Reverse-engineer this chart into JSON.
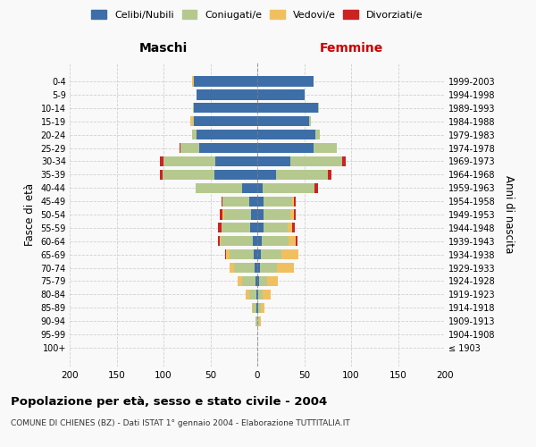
{
  "age_groups": [
    "100+",
    "95-99",
    "90-94",
    "85-89",
    "80-84",
    "75-79",
    "70-74",
    "65-69",
    "60-64",
    "55-59",
    "50-54",
    "45-49",
    "40-44",
    "35-39",
    "30-34",
    "25-29",
    "20-24",
    "15-19",
    "10-14",
    "5-9",
    "0-4"
  ],
  "birth_years": [
    "≤ 1903",
    "1904-1908",
    "1909-1913",
    "1914-1918",
    "1919-1923",
    "1924-1928",
    "1929-1933",
    "1934-1938",
    "1939-1943",
    "1944-1948",
    "1949-1953",
    "1954-1958",
    "1959-1963",
    "1964-1968",
    "1969-1973",
    "1974-1978",
    "1979-1983",
    "1984-1988",
    "1989-1993",
    "1994-1998",
    "1999-2003"
  ],
  "male": {
    "celibi": [
      0,
      0,
      0,
      1,
      1,
      2,
      3,
      4,
      5,
      8,
      7,
      9,
      16,
      46,
      45,
      62,
      65,
      68,
      68,
      65,
      68
    ],
    "coniugati": [
      0,
      0,
      2,
      4,
      8,
      14,
      22,
      26,
      34,
      30,
      28,
      28,
      50,
      55,
      55,
      20,
      5,
      1,
      1,
      0,
      0
    ],
    "vedovi": [
      0,
      0,
      0,
      1,
      3,
      5,
      5,
      3,
      1,
      0,
      2,
      0,
      0,
      0,
      0,
      0,
      0,
      2,
      0,
      0,
      2
    ],
    "divorziati": [
      0,
      0,
      0,
      0,
      0,
      0,
      0,
      1,
      2,
      4,
      3,
      1,
      0,
      3,
      4,
      1,
      0,
      0,
      0,
      0,
      0
    ]
  },
  "female": {
    "nubili": [
      0,
      0,
      0,
      1,
      1,
      2,
      3,
      4,
      5,
      7,
      7,
      7,
      6,
      20,
      35,
      60,
      62,
      55,
      65,
      50,
      60
    ],
    "coniugate": [
      0,
      0,
      2,
      3,
      5,
      8,
      18,
      22,
      28,
      25,
      28,
      30,
      55,
      55,
      55,
      25,
      5,
      2,
      1,
      0,
      0
    ],
    "vedove": [
      0,
      0,
      2,
      4,
      8,
      12,
      18,
      18,
      8,
      5,
      4,
      2,
      0,
      0,
      0,
      0,
      0,
      0,
      0,
      0,
      0
    ],
    "divorziate": [
      0,
      0,
      0,
      0,
      0,
      0,
      0,
      0,
      2,
      3,
      2,
      2,
      4,
      4,
      4,
      0,
      0,
      0,
      0,
      0,
      0
    ]
  },
  "colors": {
    "celibi": "#3d6ea8",
    "coniugati": "#b5c98e",
    "vedovi": "#f0c060",
    "divorziati": "#cc2222"
  },
  "title": "Popolazione per età, sesso e stato civile - 2004",
  "subtitle": "COMUNE DI CHIENES (BZ) - Dati ISTAT 1° gennaio 2004 - Elaborazione TUTTITALIA.IT",
  "xlabel_left": "Maschi",
  "xlabel_right": "Femmine",
  "ylabel_left": "Fasce di età",
  "ylabel_right": "Anni di nascita",
  "xlim": 200,
  "background_color": "#f9f9f9",
  "grid_color": "#cccccc",
  "femmine_color": "#cc0000"
}
